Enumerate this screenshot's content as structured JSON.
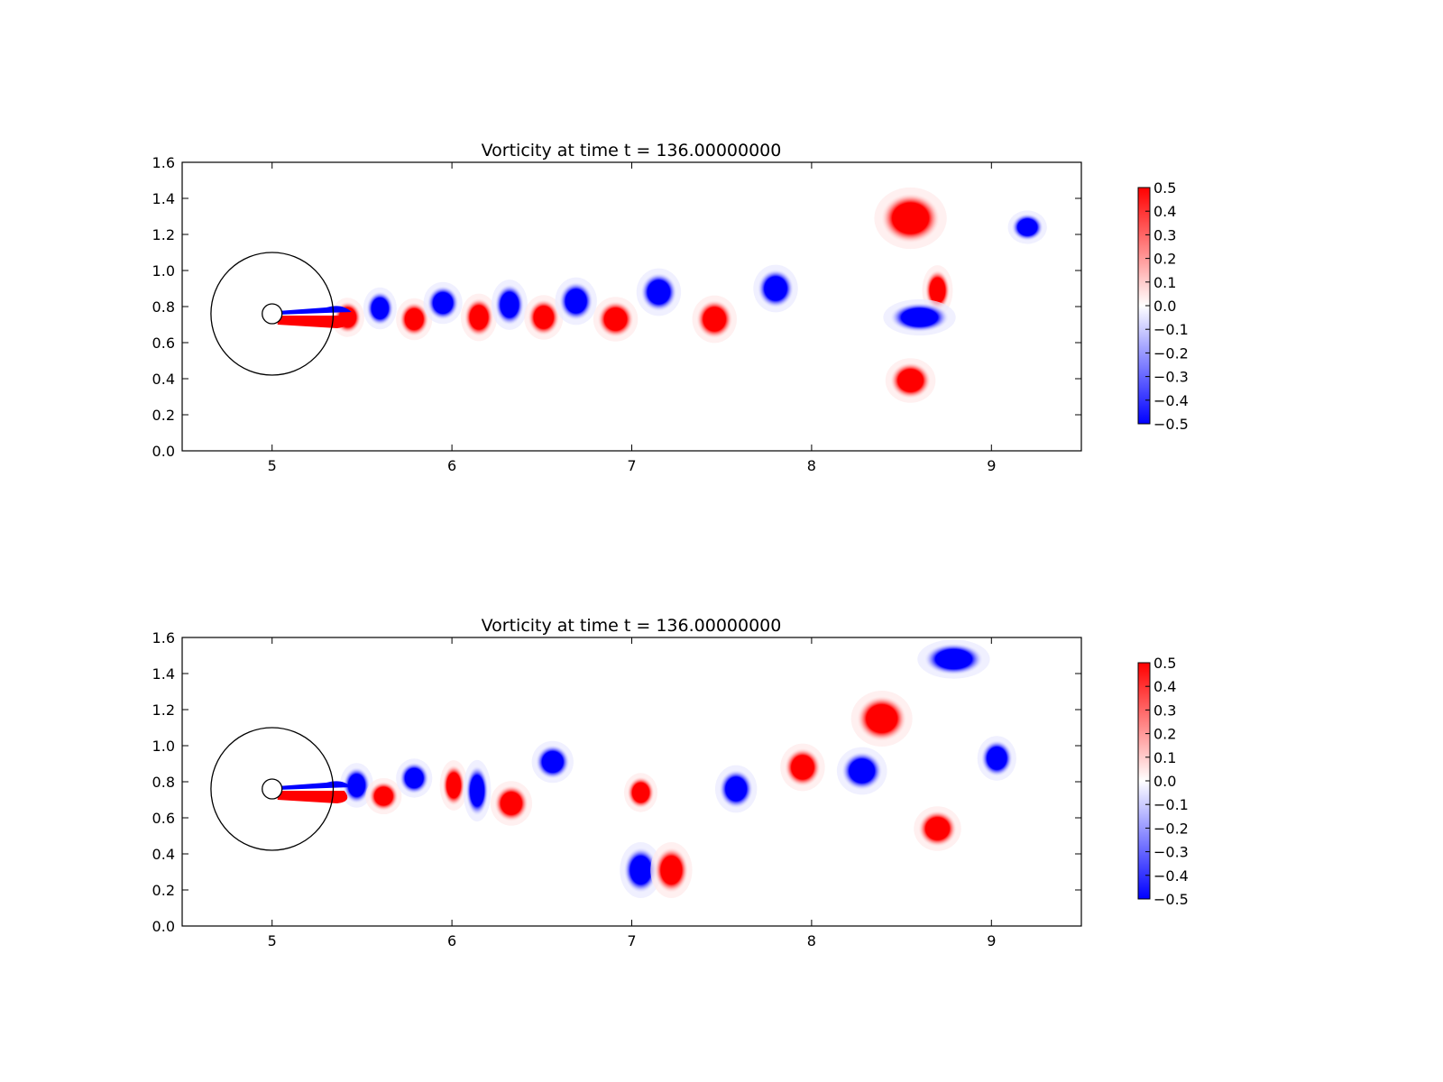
{
  "chart_data": [
    {
      "type": "heatmap",
      "title": "Vorticity at time t =    136.00000000",
      "xlabel": "",
      "ylabel": "",
      "xlim": [
        4.5,
        9.5
      ],
      "ylim": [
        0.0,
        1.6
      ],
      "x_ticks": [
        "5",
        "6",
        "7",
        "8",
        "9"
      ],
      "y_ticks": [
        "0.0",
        "0.2",
        "0.4",
        "0.6",
        "0.8",
        "1.0",
        "1.2",
        "1.4",
        "1.6"
      ],
      "colorbar": {
        "colormap": "bwr",
        "range": [
          -0.5,
          0.5
        ],
        "ticks": [
          "0.5",
          "0.4",
          "0.3",
          "0.2",
          "0.1",
          "0.0",
          "−0.1",
          "−0.2",
          "−0.3",
          "−0.4",
          "−0.5"
        ]
      },
      "colors": {
        "positive": "#ff0000",
        "negative": "#0000ff",
        "zero": "#ffffff"
      },
      "overlays": {
        "large_circle": {
          "center": [
            5.0,
            0.76
          ],
          "radius": 0.34
        },
        "small_circle": {
          "center": [
            5.0,
            0.76
          ],
          "radius": 0.055
        }
      },
      "vortices": [
        {
          "x": 5.42,
          "y": 0.74,
          "w": 0.5,
          "rx": 0.06,
          "ry": 0.07
        },
        {
          "x": 5.6,
          "y": 0.79,
          "w": -0.5,
          "rx": 0.06,
          "ry": 0.075
        },
        {
          "x": 5.79,
          "y": 0.73,
          "w": 0.5,
          "rx": 0.065,
          "ry": 0.075
        },
        {
          "x": 5.95,
          "y": 0.82,
          "w": -0.5,
          "rx": 0.07,
          "ry": 0.075
        },
        {
          "x": 6.15,
          "y": 0.74,
          "w": 0.5,
          "rx": 0.065,
          "ry": 0.085
        },
        {
          "x": 6.32,
          "y": 0.81,
          "w": -0.5,
          "rx": 0.065,
          "ry": 0.09
        },
        {
          "x": 6.51,
          "y": 0.74,
          "w": 0.5,
          "rx": 0.07,
          "ry": 0.08
        },
        {
          "x": 6.69,
          "y": 0.83,
          "w": -0.5,
          "rx": 0.075,
          "ry": 0.085
        },
        {
          "x": 6.91,
          "y": 0.73,
          "w": 0.5,
          "rx": 0.08,
          "ry": 0.08
        },
        {
          "x": 7.15,
          "y": 0.88,
          "w": -0.5,
          "rx": 0.08,
          "ry": 0.085
        },
        {
          "x": 7.46,
          "y": 0.73,
          "w": 0.5,
          "rx": 0.08,
          "ry": 0.085
        },
        {
          "x": 7.8,
          "y": 0.9,
          "w": -0.5,
          "rx": 0.08,
          "ry": 0.085
        },
        {
          "x": 8.55,
          "y": 1.29,
          "w": 0.5,
          "rx": 0.13,
          "ry": 0.11
        },
        {
          "x": 8.7,
          "y": 0.89,
          "w": 0.5,
          "rx": 0.055,
          "ry": 0.09
        },
        {
          "x": 8.6,
          "y": 0.74,
          "w": -0.5,
          "rx": 0.13,
          "ry": 0.065
        },
        {
          "x": 8.55,
          "y": 0.39,
          "w": 0.5,
          "rx": 0.09,
          "ry": 0.08
        },
        {
          "x": 9.2,
          "y": 1.24,
          "w": -0.5,
          "rx": 0.07,
          "ry": 0.06
        }
      ]
    },
    {
      "type": "heatmap",
      "title": "Vorticity at time t =    136.00000000",
      "xlabel": "",
      "ylabel": "",
      "xlim": [
        4.5,
        9.5
      ],
      "ylim": [
        0.0,
        1.6
      ],
      "x_ticks": [
        "5",
        "6",
        "7",
        "8",
        "9"
      ],
      "y_ticks": [
        "0.0",
        "0.2",
        "0.4",
        "0.6",
        "0.8",
        "1.0",
        "1.2",
        "1.4",
        "1.6"
      ],
      "colorbar": {
        "colormap": "bwr",
        "range": [
          -0.5,
          0.5
        ],
        "ticks": [
          "0.5",
          "0.4",
          "0.3",
          "0.2",
          "0.1",
          "0.0",
          "−0.1",
          "−0.2",
          "−0.3",
          "−0.4",
          "−0.5"
        ]
      },
      "colors": {
        "positive": "#ff0000",
        "negative": "#0000ff",
        "zero": "#ffffff"
      },
      "overlays": {
        "large_circle": {
          "center": [
            5.0,
            0.76
          ],
          "radius": 0.34
        },
        "small_circle": {
          "center": [
            5.0,
            0.76
          ],
          "radius": 0.055
        }
      },
      "vortices": [
        {
          "x": 5.47,
          "y": 0.78,
          "w": -0.5,
          "rx": 0.06,
          "ry": 0.08
        },
        {
          "x": 5.62,
          "y": 0.72,
          "w": 0.5,
          "rx": 0.065,
          "ry": 0.065
        },
        {
          "x": 5.79,
          "y": 0.82,
          "w": -0.5,
          "rx": 0.065,
          "ry": 0.07
        },
        {
          "x": 6.01,
          "y": 0.78,
          "w": 0.5,
          "rx": 0.05,
          "ry": 0.09
        },
        {
          "x": 6.14,
          "y": 0.75,
          "w": -0.5,
          "rx": 0.05,
          "ry": 0.11
        },
        {
          "x": 6.33,
          "y": 0.68,
          "w": 0.5,
          "rx": 0.075,
          "ry": 0.08
        },
        {
          "x": 6.56,
          "y": 0.91,
          "w": -0.5,
          "rx": 0.075,
          "ry": 0.075
        },
        {
          "x": 7.05,
          "y": 0.74,
          "w": 0.5,
          "rx": 0.06,
          "ry": 0.07
        },
        {
          "x": 7.05,
          "y": 0.31,
          "w": -0.5,
          "rx": 0.075,
          "ry": 0.1
        },
        {
          "x": 7.22,
          "y": 0.31,
          "w": 0.5,
          "rx": 0.075,
          "ry": 0.1
        },
        {
          "x": 7.58,
          "y": 0.76,
          "w": -0.5,
          "rx": 0.075,
          "ry": 0.085
        },
        {
          "x": 7.95,
          "y": 0.88,
          "w": 0.5,
          "rx": 0.08,
          "ry": 0.085
        },
        {
          "x": 8.28,
          "y": 0.86,
          "w": -0.5,
          "rx": 0.09,
          "ry": 0.085
        },
        {
          "x": 8.39,
          "y": 1.15,
          "w": 0.5,
          "rx": 0.11,
          "ry": 0.1
        },
        {
          "x": 8.79,
          "y": 1.48,
          "w": -0.5,
          "rx": 0.13,
          "ry": 0.07
        },
        {
          "x": 9.03,
          "y": 0.93,
          "w": -0.5,
          "rx": 0.07,
          "ry": 0.08
        },
        {
          "x": 8.7,
          "y": 0.54,
          "w": 0.5,
          "rx": 0.085,
          "ry": 0.08
        }
      ]
    }
  ]
}
